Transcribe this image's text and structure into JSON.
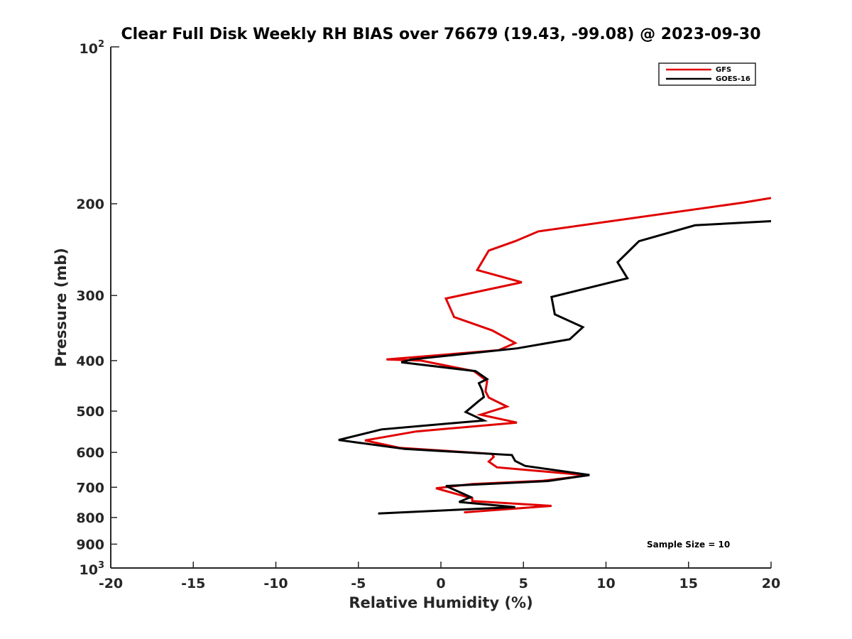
{
  "chart_data": {
    "type": "line",
    "title": "Clear Full Disk Weekly RH BIAS over 76679 (19.43, -99.08) @ 2023-09-30",
    "xlabel": "Relative Humidity (%)",
    "ylabel": "Pressure (mb)",
    "xlim": [
      -20,
      20
    ],
    "ylim": [
      100,
      1000
    ],
    "y_scale": "log",
    "y_reversed": true,
    "x_ticks": [
      -20,
      -15,
      -10,
      -5,
      0,
      5,
      10,
      15,
      20
    ],
    "x_tick_labels": [
      "-20",
      "-15",
      "-10",
      "-5",
      "0",
      "5",
      "10",
      "15",
      "20"
    ],
    "y_ticks": [
      200,
      300,
      400,
      500,
      600,
      700,
      800,
      900
    ],
    "y_tick_labels": [
      "200",
      "300",
      "400",
      "500",
      "600",
      "700",
      "800",
      "900"
    ],
    "y_decade_labels": [
      {
        "value": 100,
        "base": "10",
        "exp": "2"
      },
      {
        "value": 1000,
        "base": "10",
        "exp": "3"
      }
    ],
    "grid": false,
    "legend_position": "top-right",
    "annotation": "Sample Size = 10",
    "colors": {
      "axis": "#262626"
    },
    "series": [
      {
        "name": "GFS",
        "color": "#e00000",
        "points": [
          [
            20.0,
            195
          ],
          [
            18.3,
            199
          ],
          [
            5.9,
            226
          ],
          [
            4.5,
            236
          ],
          [
            2.9,
            246
          ],
          [
            2.2,
            268
          ],
          [
            4.9,
            283
          ],
          [
            0.3,
            304
          ],
          [
            0.8,
            330
          ],
          [
            3.1,
            350
          ],
          [
            4.5,
            370
          ],
          [
            3.5,
            382
          ],
          [
            -3.3,
            398
          ],
          [
            -1.2,
            400
          ],
          [
            2.0,
            419
          ],
          [
            2.8,
            438
          ],
          [
            2.7,
            458
          ],
          [
            2.9,
            471
          ],
          [
            4.0,
            490
          ],
          [
            2.4,
            508
          ],
          [
            4.6,
            526
          ],
          [
            -1.5,
            547
          ],
          [
            -4.6,
            569
          ],
          [
            -2.5,
            588
          ],
          [
            3.1,
            604
          ],
          [
            3.2,
            612
          ],
          [
            2.9,
            625
          ],
          [
            3.4,
            641
          ],
          [
            8.9,
            664
          ],
          [
            6.2,
            680
          ],
          [
            1.9,
            690
          ],
          [
            -0.3,
            703
          ],
          [
            1.9,
            735
          ],
          [
            1.9,
            744
          ],
          [
            6.7,
            760
          ],
          [
            1.4,
            782
          ]
        ]
      },
      {
        "name": "GOES-16",
        "color": "#000000",
        "points": [
          [
            20.0,
            216
          ],
          [
            15.4,
            220
          ],
          [
            12.0,
            236
          ],
          [
            10.7,
            259
          ],
          [
            11.3,
            278
          ],
          [
            6.7,
            302
          ],
          [
            6.9,
            326
          ],
          [
            8.6,
            345
          ],
          [
            7.8,
            364
          ],
          [
            4.6,
            379
          ],
          [
            -1.8,
            398
          ],
          [
            -2.4,
            403
          ],
          [
            2.1,
            419
          ],
          [
            2.8,
            434
          ],
          [
            2.3,
            442
          ],
          [
            2.5,
            456
          ],
          [
            2.6,
            470
          ],
          [
            2.3,
            478
          ],
          [
            1.5,
            502
          ],
          [
            2.6,
            521
          ],
          [
            -3.6,
            542
          ],
          [
            -6.2,
            568
          ],
          [
            -2.2,
            591
          ],
          [
            4.3,
            607
          ],
          [
            4.5,
            623
          ],
          [
            5.1,
            637
          ],
          [
            9.0,
            663
          ],
          [
            6.5,
            681
          ],
          [
            0.3,
            696
          ],
          [
            1.8,
            731
          ],
          [
            1.1,
            747
          ],
          [
            4.5,
            764
          ],
          [
            -3.8,
            786
          ]
        ]
      }
    ]
  }
}
